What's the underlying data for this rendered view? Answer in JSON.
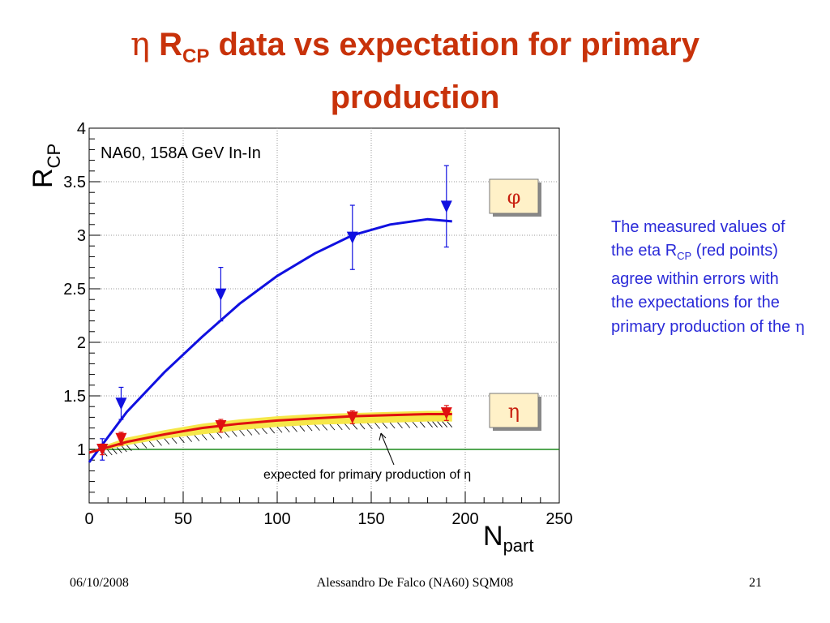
{
  "slide": {
    "title_symbol": "η",
    "title_R": "R",
    "title_sub": "CP",
    "title_rest": " data vs expectation for primary production",
    "note_1": "The measured values of the eta R",
    "note_sub": "CP",
    "note_2": " (red points) agree within errors with the expectations for the primary production of the ",
    "note_symbol": "η"
  },
  "footer": {
    "date": "06/10/2008",
    "center": "Alessandro De Falco (NA60) SQM08",
    "page": "21"
  },
  "chart_data": {
    "type": "scatter",
    "annotation": "NA60, 158A GeV In-In",
    "xlabel_main": "N",
    "xlabel_sub": "part",
    "ylabel_main": "R",
    "ylabel_sub": "CP",
    "xlim": [
      0,
      250
    ],
    "ylim": [
      0.5,
      4
    ],
    "x_ticks": [
      0,
      50,
      100,
      150,
      200,
      250
    ],
    "y_ticks": [
      1,
      1.5,
      2,
      2.5,
      3,
      3.5,
      4
    ],
    "x_tick_labels": [
      "0",
      "50",
      "100",
      "150",
      "200",
      "250"
    ],
    "y_tick_labels": [
      "1",
      "1.5",
      "2",
      "2.5",
      "3",
      "3.5",
      "4"
    ],
    "grid": true,
    "reference_line_y": 1,
    "series": [
      {
        "label": "φ",
        "color": "#1010e0",
        "x": [
          7,
          17,
          70,
          140,
          190
        ],
        "y": [
          1.0,
          1.43,
          2.45,
          2.98,
          3.27
        ],
        "yerr": [
          0.1,
          0.15,
          0.25,
          0.3,
          0.38
        ],
        "curve_x": [
          0,
          20,
          40,
          60,
          80,
          100,
          120,
          140,
          160,
          180,
          193
        ],
        "curve_y": [
          0.88,
          1.35,
          1.72,
          2.05,
          2.36,
          2.62,
          2.83,
          3.0,
          3.1,
          3.15,
          3.13
        ]
      },
      {
        "label": "η",
        "color": "#e01010",
        "x": [
          7,
          17,
          70,
          140,
          190
        ],
        "y": [
          1.0,
          1.1,
          1.22,
          1.3,
          1.34
        ],
        "yerr": [
          0.05,
          0.06,
          0.06,
          0.06,
          0.07
        ],
        "curve_x": [
          0,
          20,
          40,
          60,
          80,
          100,
          120,
          140,
          160,
          180,
          193
        ],
        "curve_y": [
          0.97,
          1.07,
          1.14,
          1.2,
          1.24,
          1.27,
          1.29,
          1.31,
          1.32,
          1.33,
          1.33
        ]
      }
    ],
    "expected_band": {
      "label": "expected for primary production of η",
      "color": "#f6e74a",
      "x": [
        7,
        20,
        40,
        60,
        80,
        100,
        120,
        140,
        160,
        180,
        193
      ],
      "upper": [
        1.03,
        1.11,
        1.18,
        1.24,
        1.28,
        1.31,
        1.33,
        1.34,
        1.35,
        1.36,
        1.36
      ],
      "lower": [
        0.99,
        1.04,
        1.1,
        1.14,
        1.18,
        1.21,
        1.23,
        1.24,
        1.25,
        1.26,
        1.26
      ]
    }
  }
}
